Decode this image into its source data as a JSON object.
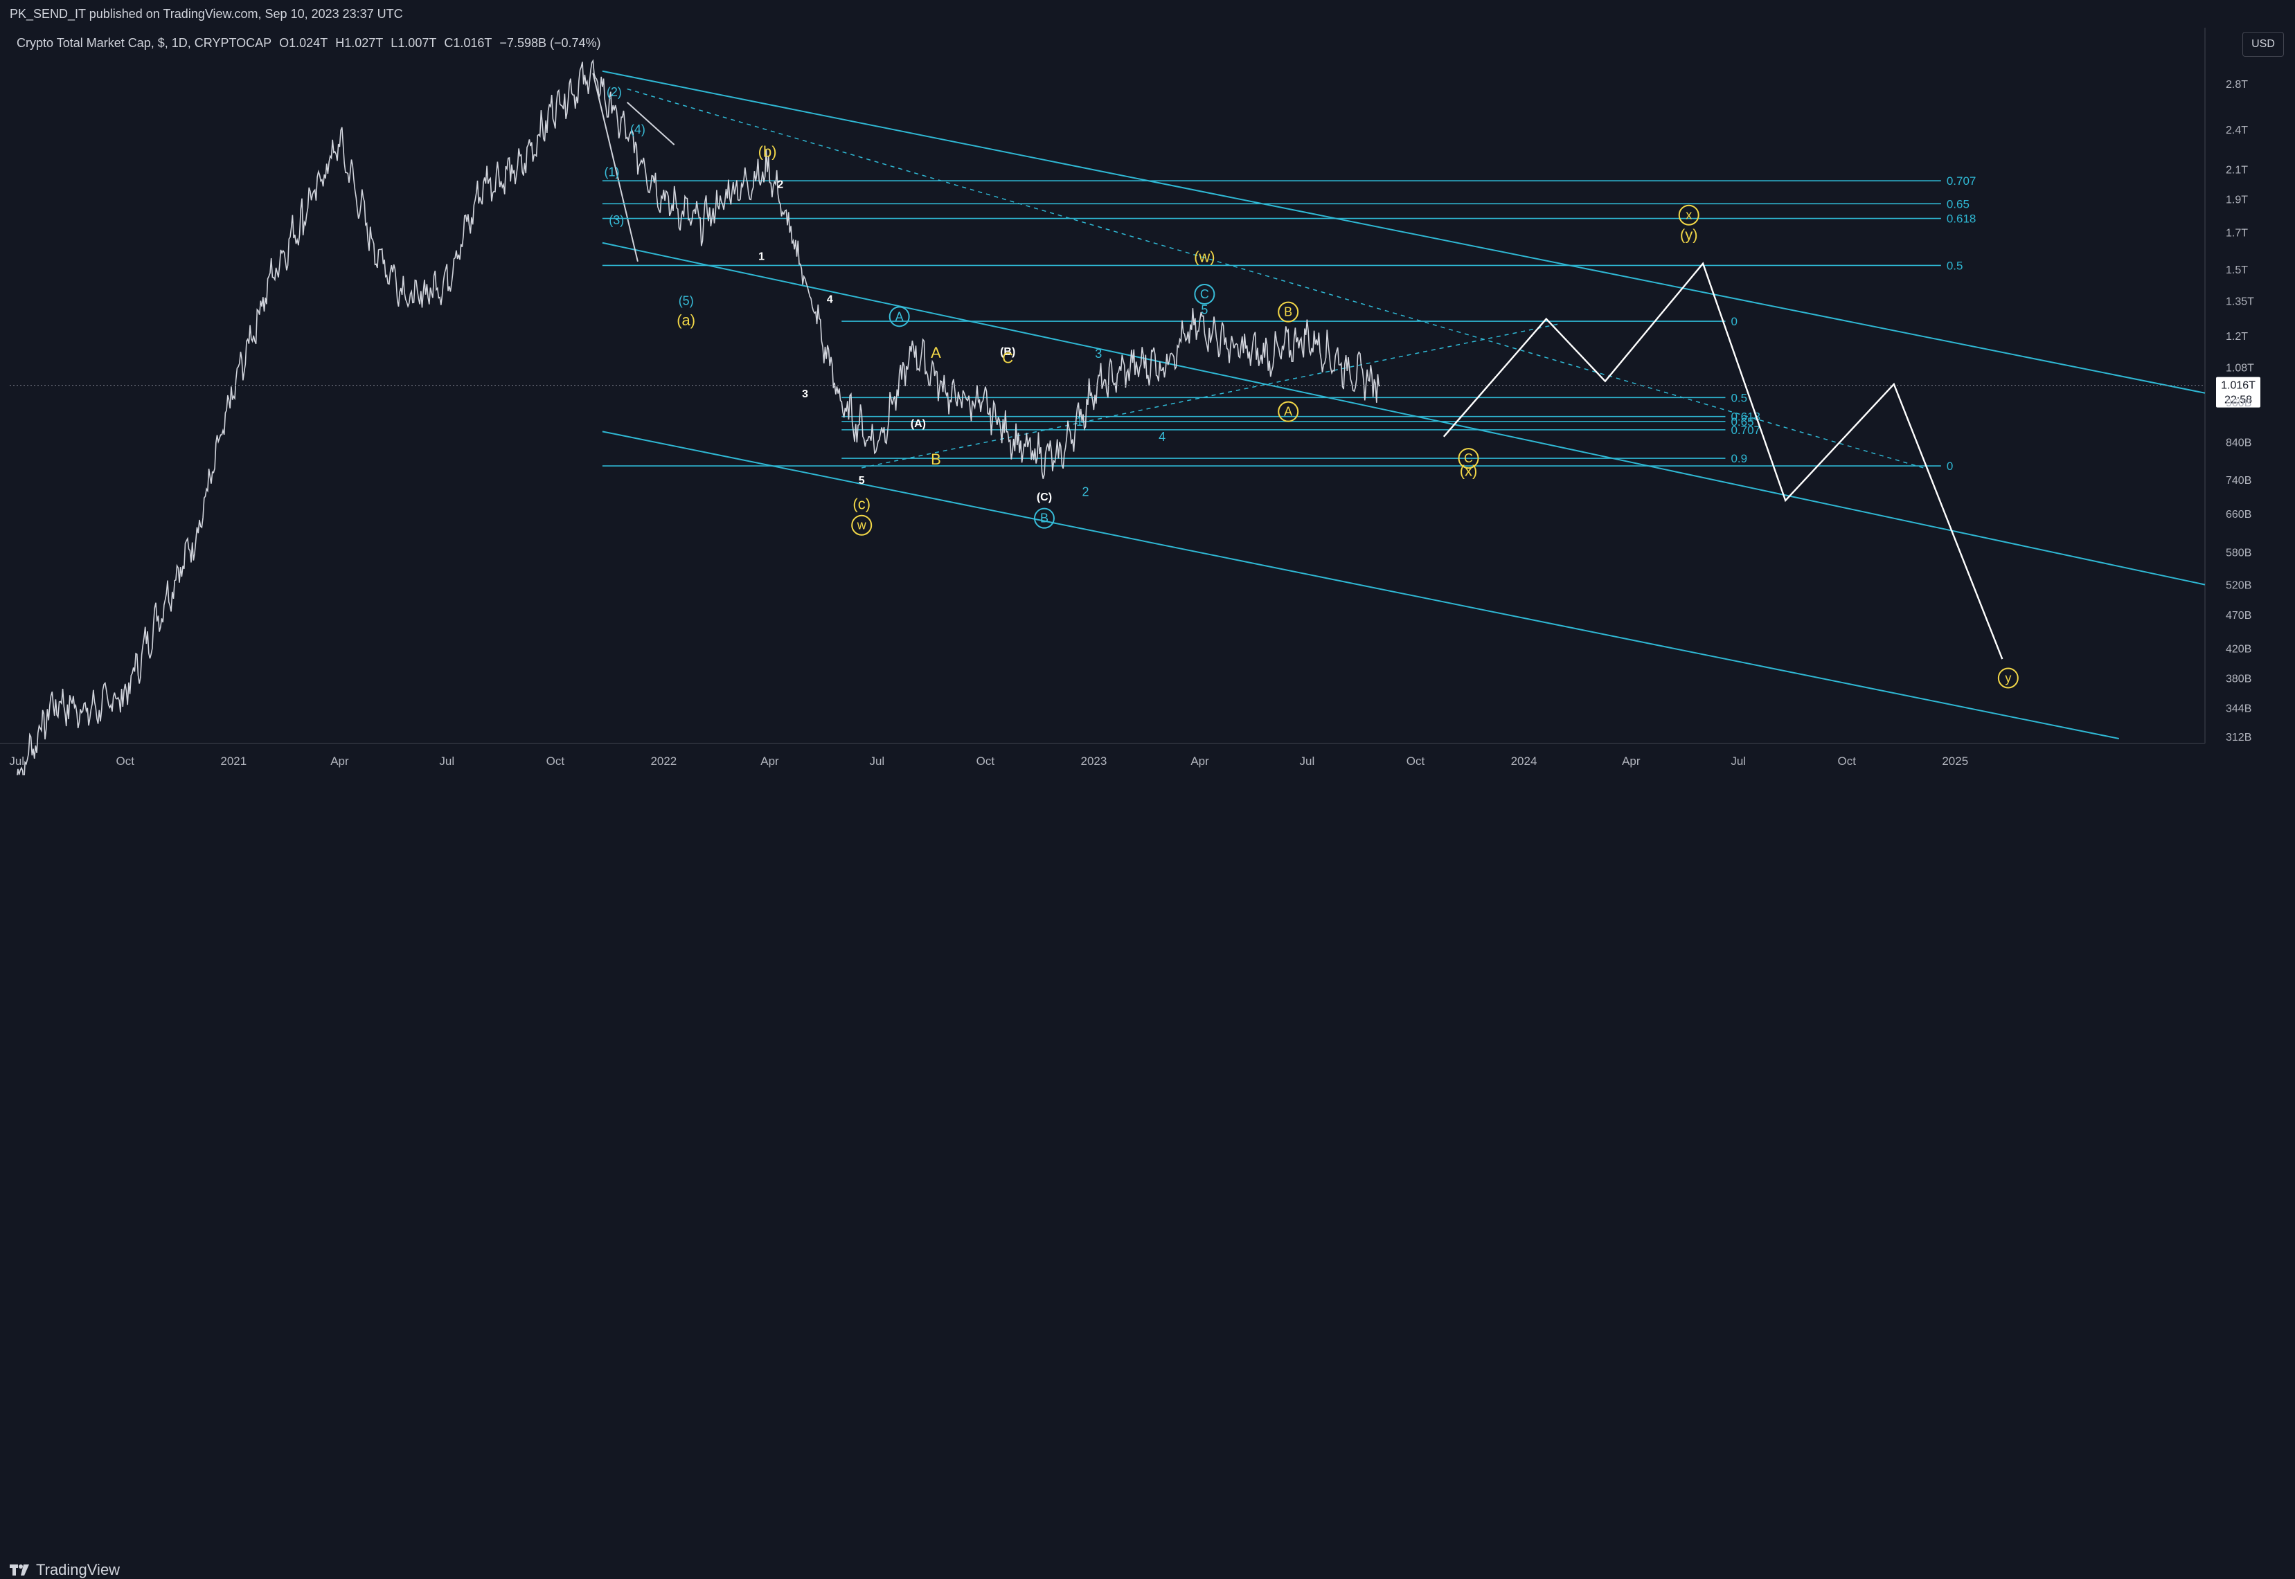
{
  "header": {
    "publish_line": "PK_SEND_IT published on TradingView.com, Sep 10, 2023 23:37 UTC"
  },
  "legend": {
    "symbol": "Crypto Total Market Cap, $, 1D, CRYPTOCAP",
    "open": "O1.024T",
    "high": "H1.027T",
    "low": "L1.007T",
    "close": "C1.016T",
    "change": "−7.598B (−0.74%)"
  },
  "currency_button": "USD",
  "last_price": "1.016T",
  "countdown": "22:58",
  "footer": {
    "brand": "TradingView"
  },
  "colors": {
    "price": "#d1d4dc",
    "channel": "#2fb8d4",
    "wave_yellow": "#f3d848",
    "wave_cyan": "#38bdd9",
    "projection": "#ffffff"
  },
  "chart_data": {
    "type": "line",
    "series": [
      {
        "values_note": "",
        "x": [
          "2020-07-01",
          "2020-08-01",
          "2020-09-01",
          "2020-10-01",
          "2020-11-01",
          "2020-12-01",
          "2021-01-01",
          "2021-02-01",
          "2021-03-01",
          "2021-04-01",
          "2021-05-01",
          "2021-06-01",
          "2021-07-01",
          "2021-08-01",
          "2021-09-01",
          "2021-10-01",
          "2021-11-01",
          "2021-12-01",
          "2022-01-01",
          "2022-02-01",
          "2022-03-01",
          "2022-04-01",
          "2022-05-01",
          "2022-06-01",
          "2022-07-01",
          "2022-08-01",
          "2022-09-01",
          "2022-10-01",
          "2022-11-01",
          "2022-12-01",
          "2023-01-01",
          "2023-02-01",
          "2023-03-01",
          "2023-04-01",
          "2023-05-01",
          "2023-06-01",
          "2023-07-01",
          "2023-08-01",
          "2023-09-01"
        ],
        "y": [
          0.27,
          0.35,
          0.34,
          0.36,
          0.48,
          0.62,
          1.0,
          1.45,
          1.8,
          2.3,
          1.6,
          1.35,
          1.45,
          2.0,
          2.1,
          2.6,
          2.9,
          2.35,
          1.9,
          1.75,
          1.95,
          2.1,
          1.45,
          0.95,
          0.83,
          1.15,
          0.98,
          0.95,
          0.82,
          0.79,
          1.0,
          1.08,
          1.1,
          1.25,
          1.15,
          1.12,
          1.2,
          1.08,
          1.016
        ]
      }
    ],
    "y_ticks": [
      "2.8T",
      "2.4T",
      "2.1T",
      "1.9T",
      "1.7T",
      "1.5T",
      "1.35T",
      "1.2T",
      "1.08T",
      "960B",
      "840B",
      "740B",
      "660B",
      "580B",
      "520B",
      "470B",
      "420B",
      "380B",
      "344B",
      "312B"
    ],
    "x_ticks": [
      "Jul",
      "Oct",
      "2021",
      "Apr",
      "Jul",
      "Oct",
      "2022",
      "Apr",
      "Jul",
      "Oct",
      "2023",
      "Apr",
      "Jul",
      "Oct",
      "2024",
      "Apr",
      "Jul",
      "Oct",
      "2025"
    ],
    "scale": "log",
    "xlim": [
      "2020-06-25",
      "2025-08-01"
    ],
    "ylim": [
      0.305,
      3.05
    ],
    "fib_upper": [
      {
        "label": "0.707",
        "y": 2.02
      },
      {
        "label": "0.65",
        "y": 1.87
      },
      {
        "label": "0.618",
        "y": 1.78
      },
      {
        "label": "0.5",
        "y": 1.52
      }
    ],
    "fib_lower": [
      {
        "label": "0",
        "y": 1.26
      },
      {
        "label": "0.5",
        "y": 0.975
      },
      {
        "label": "0.618",
        "y": 0.915
      },
      {
        "label": "0.65",
        "y": 0.9
      },
      {
        "label": "0.707",
        "y": 0.875
      },
      {
        "label": "0.9",
        "y": 0.795
      }
    ],
    "wave_labels": [
      {
        "text": "(2)",
        "x": "2021-11-20",
        "y": 2.72,
        "color": "cyan"
      },
      {
        "text": "(4)",
        "x": "2021-12-10",
        "y": 2.4,
        "color": "cyan"
      },
      {
        "text": "(1)",
        "x": "2021-11-18",
        "y": 2.08,
        "color": "cyan"
      },
      {
        "text": "(3)",
        "x": "2021-11-22",
        "y": 1.77,
        "color": "cyan"
      },
      {
        "text": "(5)",
        "x": "2022-01-20",
        "y": 1.35,
        "color": "cyan"
      },
      {
        "text": "(a)",
        "x": "2022-01-20",
        "y": 1.26,
        "color": "yellow"
      },
      {
        "text": "(b)",
        "x": "2022-03-30",
        "y": 2.22,
        "color": "yellow"
      },
      {
        "text": "2",
        "x": "2022-04-10",
        "y": 2.0,
        "color": "white"
      },
      {
        "text": "1",
        "x": "2022-03-25",
        "y": 1.57,
        "color": "white"
      },
      {
        "text": "4",
        "x": "2022-05-22",
        "y": 1.36,
        "color": "white"
      },
      {
        "text": "3",
        "x": "2022-05-01",
        "y": 0.99,
        "color": "white"
      },
      {
        "text": "5",
        "x": "2022-06-18",
        "y": 0.74,
        "color": "white"
      },
      {
        "text": "(c)",
        "x": "2022-06-18",
        "y": 0.68,
        "color": "yellow"
      },
      {
        "text": "w",
        "x": "2022-06-18",
        "y": 0.635,
        "color": "yellow-circle"
      },
      {
        "text": "A",
        "x": "2022-07-20",
        "y": 1.28,
        "color": "cyan-circle"
      },
      {
        "text": "A",
        "x": "2022-08-20",
        "y": 1.13,
        "color": "yellow"
      },
      {
        "text": "(A)",
        "x": "2022-08-05",
        "y": 0.895,
        "color": "white"
      },
      {
        "text": "B",
        "x": "2022-08-20",
        "y": 0.79,
        "color": "yellow"
      },
      {
        "text": "(B)",
        "x": "2022-10-20",
        "y": 1.14,
        "color": "white"
      },
      {
        "text": "C",
        "x": "2022-10-20",
        "y": 1.11,
        "color": "yellow"
      },
      {
        "text": "(C)",
        "x": "2022-11-20",
        "y": 0.7,
        "color": "white"
      },
      {
        "text": "B",
        "x": "2022-11-20",
        "y": 0.65,
        "color": "cyan-circle"
      },
      {
        "text": "1",
        "x": "2022-12-20",
        "y": 0.9,
        "color": "cyan"
      },
      {
        "text": "2",
        "x": "2022-12-25",
        "y": 0.71,
        "color": "cyan"
      },
      {
        "text": "3",
        "x": "2023-01-05",
        "y": 1.13,
        "color": "cyan"
      },
      {
        "text": "4",
        "x": "2023-02-28",
        "y": 0.855,
        "color": "cyan"
      },
      {
        "text": "5",
        "x": "2023-04-05",
        "y": 1.31,
        "color": "cyan"
      },
      {
        "text": "C",
        "x": "2023-04-05",
        "y": 1.38,
        "color": "cyan-circle"
      },
      {
        "text": "(w)",
        "x": "2023-04-05",
        "y": 1.56,
        "color": "yellow"
      },
      {
        "text": "B",
        "x": "2023-06-15",
        "y": 1.3,
        "color": "yellow-circle"
      },
      {
        "text": "A",
        "x": "2023-06-15",
        "y": 0.93,
        "color": "yellow-circle"
      },
      {
        "text": "C",
        "x": "2023-11-15",
        "y": 0.795,
        "color": "yellow-circle"
      },
      {
        "text": "(x)",
        "x": "2023-11-15",
        "y": 0.76,
        "color": "yellow"
      },
      {
        "text": "x",
        "x": "2024-05-20",
        "y": 1.8,
        "color": "yellow-circle"
      },
      {
        "text": "(y)",
        "x": "2024-05-20",
        "y": 1.68,
        "color": "yellow"
      },
      {
        "text": "y",
        "x": "2025-02-15",
        "y": 0.38,
        "color": "yellow-circle"
      }
    ],
    "projection_path": [
      {
        "x": "2023-10-25",
        "y": 0.855
      },
      {
        "x": "2024-01-20",
        "y": 1.27
      },
      {
        "x": "2024-03-10",
        "y": 1.03
      },
      {
        "x": "2024-06-01",
        "y": 1.53
      },
      {
        "x": "2024-08-10",
        "y": 0.69
      },
      {
        "x": "2024-11-10",
        "y": 1.02
      },
      {
        "x": "2025-02-10",
        "y": 0.405
      }
    ],
    "channel_lines": [
      {
        "x1": "2021-11-10",
        "y1": 2.92,
        "x2": "2025-08-01",
        "y2": 0.99
      },
      {
        "x1": "2021-11-10",
        "y1": 1.64,
        "x2": "2025-08-01",
        "y2": 0.52
      },
      {
        "x1": "2021-11-10",
        "y1": 0.87,
        "x2": "2025-05-20",
        "y2": 0.31
      }
    ],
    "dashed_lines": [
      {
        "x1": "2021-12-01",
        "y1": 2.75,
        "x2": "2024-12-05",
        "y2": 0.77
      },
      {
        "x1": "2022-06-18",
        "y1": 0.77,
        "x2": "2024-02-01",
        "y2": 1.25
      }
    ],
    "extra_lines": [
      {
        "x1": "2021-12-01",
        "y1": 2.63,
        "x2": "2022-01-10",
        "y2": 2.28
      },
      {
        "x1": "2021-11-02",
        "y1": 2.9,
        "x2": "2021-12-10",
        "y2": 1.54
      }
    ],
    "fib_lower_zero": {
      "label": "0",
      "y": 0.775
    }
  }
}
